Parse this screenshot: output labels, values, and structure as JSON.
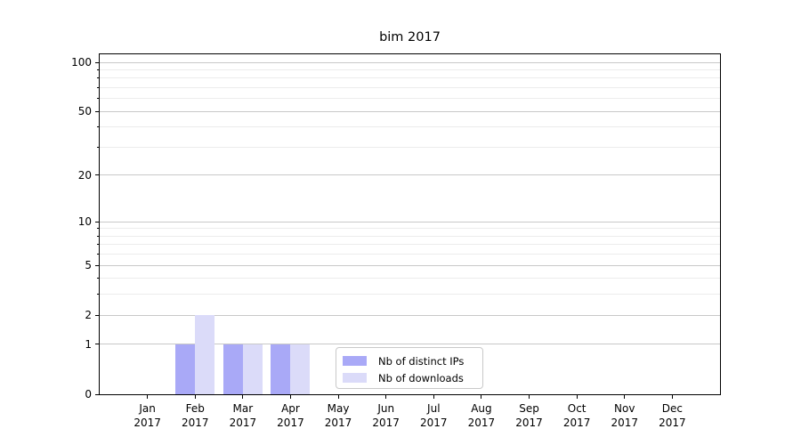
{
  "title": "bim 2017",
  "colors": {
    "background": "#ffffff",
    "axis": "#000000",
    "text": "#000000",
    "grid_major": "#c8c8c8",
    "grid_minor": "#ececec",
    "legend_border": "#c9c9c9",
    "series_ips": "#a9a9f7",
    "series_downloads": "#dbdbf9"
  },
  "chart_data": {
    "type": "bar",
    "title": "bim 2017",
    "categories": [
      "Jan 2017",
      "Feb 2017",
      "Mar 2017",
      "Apr 2017",
      "May 2017",
      "Jun 2017",
      "Jul 2017",
      "Aug 2017",
      "Sep 2017",
      "Oct 2017",
      "Nov 2017",
      "Dec 2017"
    ],
    "series": [
      {
        "name": "Nb of distinct IPs",
        "color": "#a9a9f7",
        "values": [
          0,
          1,
          1,
          1,
          0,
          0,
          0,
          0,
          0,
          0,
          0,
          0
        ]
      },
      {
        "name": "Nb of downloads",
        "color": "#dbdbf9",
        "values": [
          0,
          2,
          1,
          1,
          0,
          0,
          0,
          0,
          0,
          0,
          0,
          0
        ]
      }
    ],
    "xlabel": "",
    "ylabel": "",
    "y_scale": "log1p",
    "ylim": [
      0,
      112
    ],
    "y_major_ticks": [
      100,
      50,
      20,
      10,
      5,
      2,
      1,
      0
    ],
    "y_minor_ticks": [
      90,
      80,
      70,
      60,
      40,
      30,
      9,
      8,
      7,
      6,
      4,
      3
    ],
    "grid": "horizontal",
    "legend_position": "lower center"
  }
}
